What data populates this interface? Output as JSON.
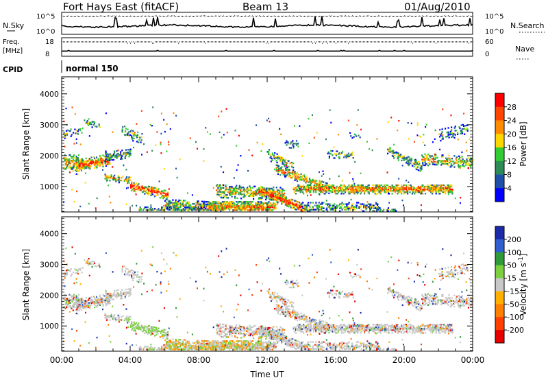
{
  "header": {
    "title": "Fort Hays East (fitACF)",
    "beam": "Beam 13",
    "date": "01/Aug/2010"
  },
  "noise_panel": {
    "left_label": "N.Sky",
    "right_label": "N.Search",
    "left_ticks": [
      "10^5",
      "10^0"
    ],
    "right_ticks": [
      "10^5",
      "10^0"
    ]
  },
  "freq_panel": {
    "left_label_1": "Freq.",
    "left_label_2": "[MHz]",
    "right_label": "Nave",
    "left_ticks": [
      "18",
      "8"
    ],
    "right_ticks": [
      "60",
      "0"
    ]
  },
  "cpid": {
    "label": "CPID",
    "value": "normal 150"
  },
  "chart_data": [
    {
      "type": "heatmap",
      "name": "power",
      "ylabel": "Slant Range [km]",
      "xlabel": "",
      "ylim": [
        180,
        4550
      ],
      "xlim_hours": [
        0,
        24
      ],
      "ytick_labels": [
        "1000",
        "2000",
        "3000",
        "4000"
      ],
      "yticks": [
        1000,
        2000,
        3000,
        4000
      ],
      "colorbar": {
        "label": "Power [dB]",
        "tick_labels": [
          "4",
          "8",
          "12",
          "16",
          "20",
          "24",
          "28"
        ],
        "colors": [
          "#0000ff",
          "#1f4fa8",
          "#2e8b57",
          "#32cd32",
          "#ffd700",
          "#ff8c00",
          "#ff4500",
          "#ff0000"
        ]
      }
    },
    {
      "type": "heatmap",
      "name": "velocity",
      "ylabel": "Slant Range [km]",
      "xlabel": "Time UT",
      "ylim": [
        180,
        4550
      ],
      "xlim_hours": [
        0,
        24
      ],
      "ytick_labels": [
        "1000",
        "2000",
        "3000",
        "4000"
      ],
      "yticks": [
        1000,
        2000,
        3000,
        4000
      ],
      "xtick_labels": [
        "00:00",
        "04:00",
        "08:00",
        "12:00",
        "16:00",
        "20:00",
        "00:00"
      ],
      "xticks_hours": [
        0,
        4,
        8,
        12,
        16,
        20,
        24
      ],
      "colorbar": {
        "label": "Velocity [m s",
        "label_sup": "-1",
        "label_end": "]",
        "tick_labels": [
          "200",
          "100",
          "50",
          "15",
          "-15",
          "-50",
          "-100",
          "-200"
        ],
        "colors": [
          "#1a2aa8",
          "#3060d0",
          "#2f9a3a",
          "#7cd040",
          "#c8c8c8",
          "#ffb000",
          "#ff8000",
          "#ff4000",
          "#e80000"
        ]
      }
    }
  ]
}
